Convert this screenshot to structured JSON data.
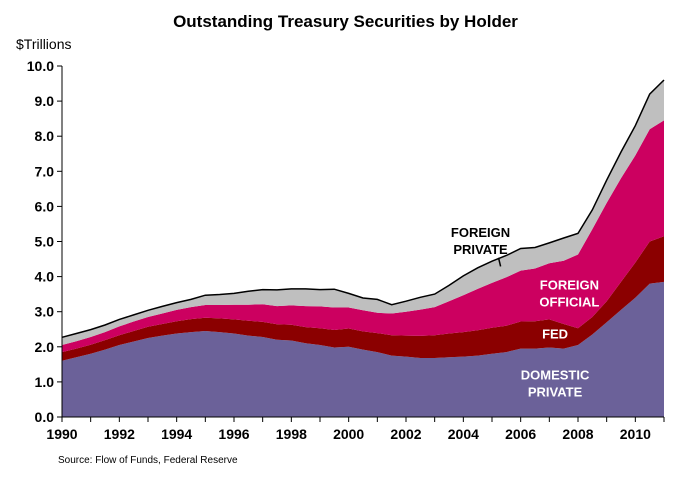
{
  "chart_data": {
    "type": "area",
    "stacked": true,
    "title": "Outstanding Treasury Securities by Holder",
    "ylabel": "$Trillions",
    "source": "Source:  Flow of Funds, Federal Reserve",
    "xlim": [
      1990,
      2011
    ],
    "ylim": [
      0,
      10
    ],
    "x_ticks": [
      1990,
      1992,
      1994,
      1996,
      1998,
      2000,
      2002,
      2004,
      2006,
      2008,
      2010
    ],
    "y_ticks": [
      "0.0",
      "1.0",
      "2.0",
      "3.0",
      "4.0",
      "5.0",
      "6.0",
      "7.0",
      "8.0",
      "9.0",
      "10.0"
    ],
    "grid": false,
    "x": [
      1990.0,
      1990.5,
      1991.0,
      1991.5,
      1992.0,
      1992.5,
      1993.0,
      1993.5,
      1994.0,
      1994.5,
      1995.0,
      1995.5,
      1996.0,
      1996.5,
      1997.0,
      1997.5,
      1998.0,
      1998.5,
      1999.0,
      1999.5,
      2000.0,
      2000.5,
      2001.0,
      2001.5,
      2002.0,
      2002.5,
      2003.0,
      2003.5,
      2004.0,
      2004.5,
      2005.0,
      2005.5,
      2006.0,
      2006.5,
      2007.0,
      2007.5,
      2008.0,
      2008.5,
      2009.0,
      2009.5,
      2010.0,
      2010.5,
      2011.0
    ],
    "series": [
      {
        "name": "DOMESTIC PRIVATE",
        "color": "#6b6199",
        "label_color": "#ffffff",
        "values": [
          1.6,
          1.7,
          1.8,
          1.92,
          2.05,
          2.15,
          2.25,
          2.32,
          2.38,
          2.42,
          2.45,
          2.42,
          2.38,
          2.32,
          2.28,
          2.2,
          2.18,
          2.1,
          2.05,
          1.98,
          2.0,
          1.92,
          1.85,
          1.75,
          1.72,
          1.68,
          1.68,
          1.7,
          1.72,
          1.75,
          1.8,
          1.85,
          1.95,
          1.95,
          1.98,
          1.95,
          2.05,
          2.35,
          2.7,
          3.05,
          3.4,
          3.8,
          3.85
        ]
      },
      {
        "name": "FED",
        "color": "#8b0000",
        "label_color": "#ffffff",
        "values": [
          0.25,
          0.25,
          0.26,
          0.27,
          0.28,
          0.3,
          0.32,
          0.33,
          0.35,
          0.37,
          0.38,
          0.39,
          0.4,
          0.42,
          0.43,
          0.44,
          0.45,
          0.46,
          0.48,
          0.5,
          0.52,
          0.52,
          0.54,
          0.58,
          0.6,
          0.63,
          0.65,
          0.68,
          0.7,
          0.72,
          0.74,
          0.75,
          0.77,
          0.78,
          0.8,
          0.7,
          0.48,
          0.5,
          0.6,
          0.8,
          1.0,
          1.2,
          1.3
        ]
      },
      {
        "name": "FOREIGN OFFICIAL",
        "color": "#cc0060",
        "label_color": "#ffffff",
        "values": [
          0.2,
          0.21,
          0.22,
          0.23,
          0.25,
          0.27,
          0.28,
          0.3,
          0.32,
          0.34,
          0.36,
          0.38,
          0.42,
          0.46,
          0.5,
          0.52,
          0.55,
          0.6,
          0.62,
          0.64,
          0.6,
          0.6,
          0.58,
          0.62,
          0.68,
          0.75,
          0.8,
          0.92,
          1.05,
          1.18,
          1.28,
          1.38,
          1.45,
          1.5,
          1.6,
          1.8,
          2.1,
          2.5,
          2.8,
          2.95,
          3.05,
          3.2,
          3.3
        ]
      },
      {
        "name": "FOREIGN PRIVATE",
        "color": "#bfbfbf",
        "label_color": "#000000",
        "values": [
          0.22,
          0.22,
          0.21,
          0.2,
          0.2,
          0.19,
          0.19,
          0.2,
          0.21,
          0.22,
          0.28,
          0.3,
          0.32,
          0.38,
          0.42,
          0.46,
          0.47,
          0.49,
          0.48,
          0.52,
          0.4,
          0.35,
          0.38,
          0.25,
          0.3,
          0.35,
          0.37,
          0.45,
          0.55,
          0.6,
          0.62,
          0.62,
          0.63,
          0.6,
          0.58,
          0.65,
          0.6,
          0.55,
          0.65,
          0.75,
          0.85,
          1.0,
          1.15
        ]
      }
    ]
  }
}
